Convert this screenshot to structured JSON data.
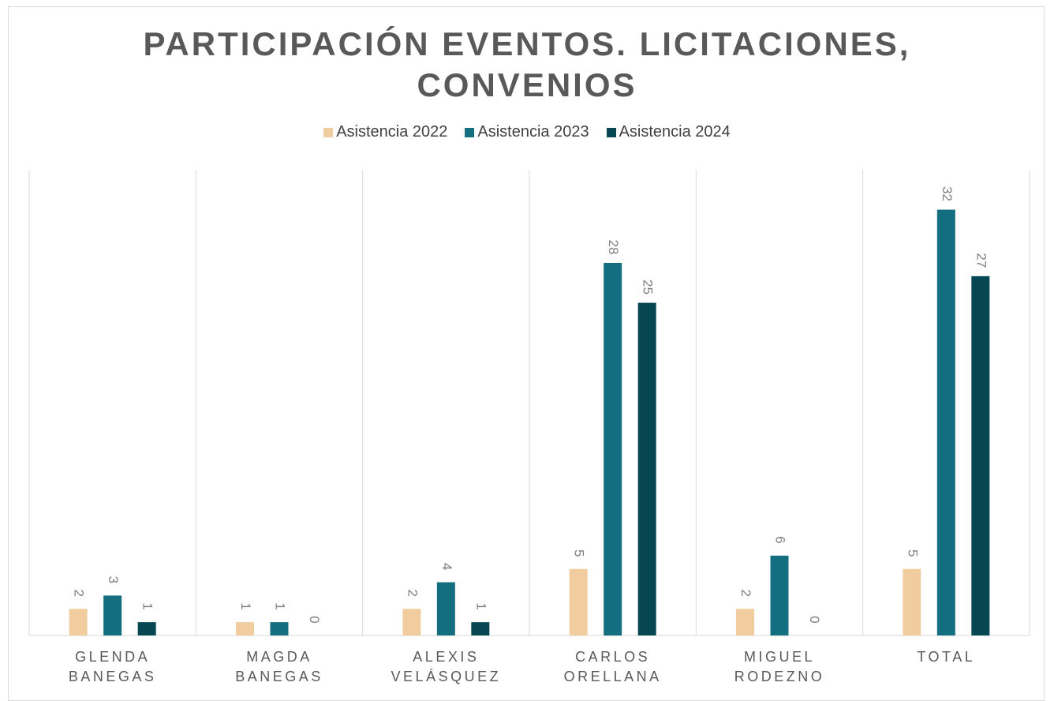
{
  "chart_data": {
    "type": "bar",
    "title": "PARTICIPACIÓN EVENTOS. LICITACIONES, CONVENIOS",
    "categories": [
      "GLENDA BANEGAS",
      "MAGDA BANEGAS",
      "ALEXIS VELÁSQUEZ",
      "CARLOS ORELLANA",
      "MIGUEL RODEZNO",
      "TOTAL"
    ],
    "series": [
      {
        "name": "Asistencia 2022",
        "color": "#f1cc9e",
        "values": [
          2,
          1,
          2,
          5,
          2,
          5
        ]
      },
      {
        "name": "Asistencia 2023",
        "color": "#136f80",
        "values": [
          3,
          1,
          4,
          28,
          6,
          32
        ]
      },
      {
        "name": "Asistencia 2024",
        "color": "#064753",
        "values": [
          1,
          0,
          1,
          25,
          0,
          27
        ]
      }
    ],
    "ylim": [
      0,
      35
    ],
    "legend": "top"
  }
}
